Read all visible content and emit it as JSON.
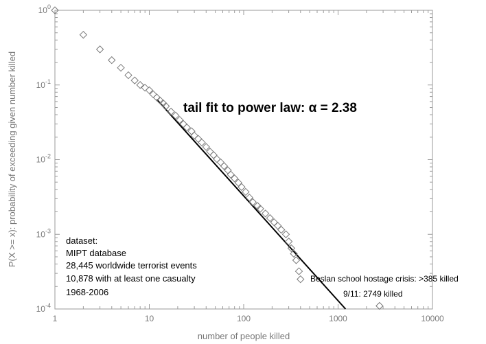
{
  "chart_data": {
    "type": "scatter",
    "x_scale": "log",
    "y_scale": "log",
    "xlim": [
      1,
      10000
    ],
    "ylim": [
      0.0001,
      1
    ],
    "xlabel": "number of people killed",
    "ylabel": "P(X >= x): probability of exceeding given number killed",
    "title_prefix": "tail fit to power law: ",
    "alpha_symbol": "α",
    "title_suffix": " = 2.38",
    "x_tick_labels": [
      "1",
      "10",
      "100",
      "1000",
      "10000"
    ],
    "y_tick_bases": [
      "10",
      "10",
      "10",
      "10",
      "10"
    ],
    "y_tick_exponents": [
      "0",
      "-1",
      "-2",
      "-3",
      "-4"
    ],
    "grid": false,
    "points": [
      [
        1,
        1.0
      ],
      [
        2,
        0.47
      ],
      [
        3,
        0.3
      ],
      [
        4,
        0.215
      ],
      [
        5,
        0.17
      ],
      [
        6,
        0.135
      ],
      [
        7,
        0.115
      ],
      [
        8,
        0.1
      ],
      [
        9,
        0.092
      ],
      [
        10,
        0.085
      ],
      [
        11,
        0.075
      ],
      [
        12,
        0.068
      ],
      [
        13,
        0.062
      ],
      [
        14,
        0.057
      ],
      [
        15,
        0.052
      ],
      [
        17,
        0.044
      ],
      [
        19,
        0.039
      ],
      [
        21,
        0.034
      ],
      [
        23,
        0.03
      ],
      [
        25,
        0.027
      ],
      [
        28,
        0.024
      ],
      [
        30,
        0.021
      ],
      [
        33,
        0.019
      ],
      [
        36,
        0.017
      ],
      [
        40,
        0.0148
      ],
      [
        44,
        0.0128
      ],
      [
        48,
        0.0115
      ],
      [
        52,
        0.0102
      ],
      [
        57,
        0.0092
      ],
      [
        62,
        0.0082
      ],
      [
        68,
        0.0072
      ],
      [
        73,
        0.0063
      ],
      [
        80,
        0.0056
      ],
      [
        88,
        0.0049
      ],
      [
        95,
        0.0043
      ],
      [
        105,
        0.0037
      ],
      [
        115,
        0.0031
      ],
      [
        125,
        0.0027
      ],
      [
        140,
        0.0024
      ],
      [
        150,
        0.0022
      ],
      [
        170,
        0.0019
      ],
      [
        190,
        0.00165
      ],
      [
        210,
        0.00145
      ],
      [
        230,
        0.0013
      ],
      [
        250,
        0.00115
      ],
      [
        280,
        0.001
      ],
      [
        300,
        0.0008
      ],
      [
        320,
        0.00065
      ],
      [
        340,
        0.00055
      ],
      [
        360,
        0.00045
      ],
      [
        385,
        0.00032
      ],
      [
        400,
        0.00025
      ],
      [
        2749,
        0.00011
      ]
    ],
    "fit_line": {
      "xmin": 12,
      "alpha": 2.38,
      "x": [
        12,
        1200
      ],
      "y": [
        0.064,
        0.0001
      ]
    },
    "legend_note": [
      "dataset:",
      "MIPT database",
      "28,445 worldwide terrorist events",
      "10,878 with at least one casualty",
      "1968-2006"
    ],
    "annotations": [
      "Beslan school hostage crisis: >385 killed",
      "9/11: 2749 killed"
    ]
  }
}
